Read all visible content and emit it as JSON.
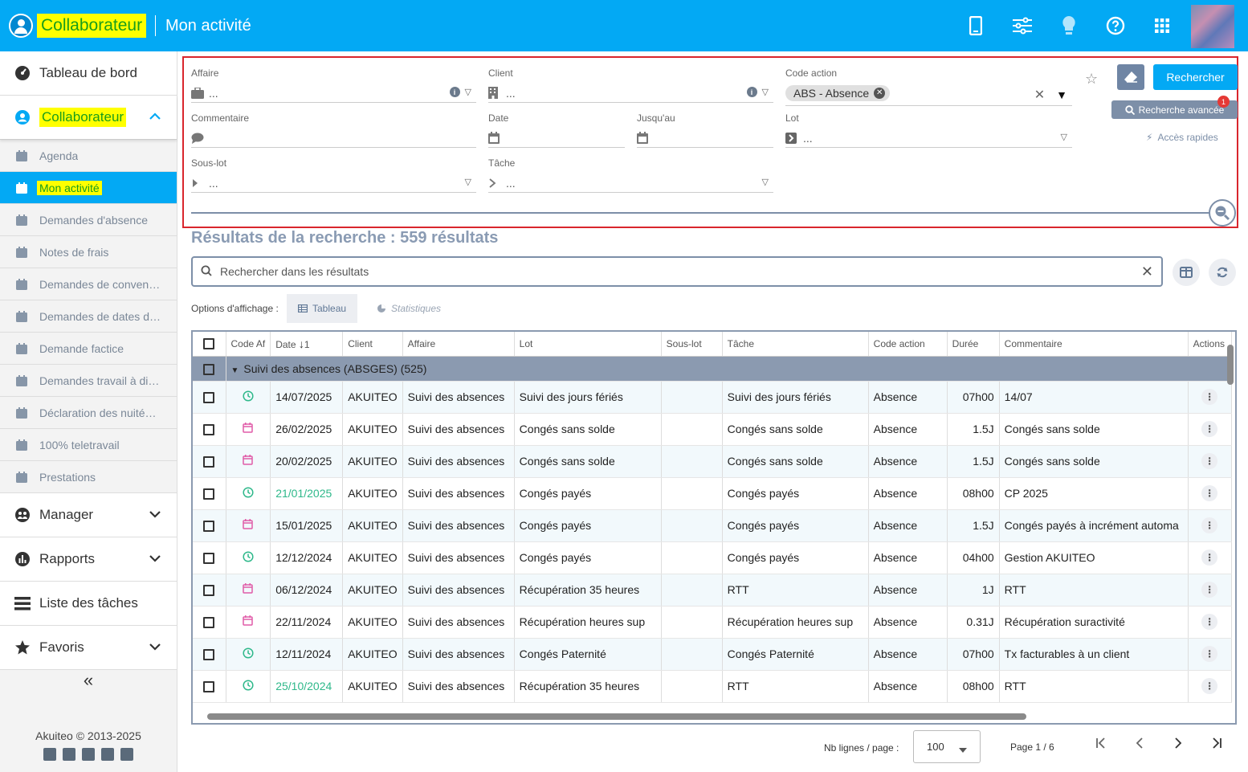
{
  "header": {
    "app_title": "Collaborateur",
    "page_title": "Mon activité",
    "icons": [
      "mobile-icon",
      "sliders-icon",
      "lightbulb-icon",
      "help-icon",
      "apps-grid-icon"
    ]
  },
  "sidebar": {
    "dashboard": "Tableau de bord",
    "collaborateur": "Collaborateur",
    "subitems": [
      {
        "label": "Agenda",
        "icon": "calendar-clock-icon"
      },
      {
        "label": "Mon activité",
        "icon": "calendar-user-icon"
      },
      {
        "label": "Demandes d'absence",
        "icon": "calendar-x-icon"
      },
      {
        "label": "Notes de frais",
        "icon": "receipt-icon"
      },
      {
        "label": "Demandes de conven…",
        "icon": "chat-icon"
      },
      {
        "label": "Demandes de dates d…",
        "icon": "chat-icon"
      },
      {
        "label": "Demande factice",
        "icon": "horse-icon"
      },
      {
        "label": "Demandes travail à di…",
        "icon": "chat-icon"
      },
      {
        "label": "Déclaration des nuité…",
        "icon": "moon-icon"
      },
      {
        "label": "100% teletravail",
        "icon": "id-card-icon"
      },
      {
        "label": "Prestations",
        "icon": "hand-icon"
      }
    ],
    "manager": "Manager",
    "rapports": "Rapports",
    "taches": "Liste des tâches",
    "favoris": "Favoris",
    "collapse": "«",
    "copyright": "Akuiteo © 2013-2025"
  },
  "filters": {
    "affaire_label": "Affaire",
    "affaire_value": "...",
    "client_label": "Client",
    "client_value": "...",
    "code_action_label": "Code action",
    "code_action_chip": "ABS - Absence",
    "commentaire_label": "Commentaire",
    "date_label": "Date",
    "jusquau_label": "Jusqu'au",
    "lot_label": "Lot",
    "lot_value": "...",
    "souslot_label": "Sous-lot",
    "souslot_value": "...",
    "tache_label": "Tâche",
    "tache_value": "...",
    "search_button": "Rechercher",
    "advanced_button": "Recherche avancée",
    "advanced_badge": "1",
    "quick_access": "Accès rapides"
  },
  "results": {
    "title": "Résultats de la recherche : 559 résultats",
    "search_placeholder": "Rechercher dans les résultats",
    "options_label": "Options d'affichage :",
    "tab_table": "Tableau",
    "tab_stats": "Statistiques"
  },
  "table": {
    "columns": [
      "Code Af",
      "Date",
      "Client",
      "Affaire",
      "Lot",
      "Sous-lot",
      "Tâche",
      "Code action",
      "Durée",
      "Commentaire",
      "Actions"
    ],
    "sort_indicator": "1",
    "group": "Suivi des absences (ABSGES) (525)",
    "rows": [
      {
        "icon": "clock",
        "date": "14/07/2025",
        "date_green": false,
        "client": "AKUITEO",
        "affaire": "Suivi des absences",
        "lot": "Suivi des jours fériés",
        "souslot": "",
        "tache": "Suivi des jours fériés",
        "code": "Absence",
        "duree": "07h00",
        "comment": "14/07"
      },
      {
        "icon": "calendar",
        "date": "26/02/2025",
        "date_green": false,
        "client": "AKUITEO",
        "affaire": "Suivi des absences",
        "lot": "Congés sans solde",
        "souslot": "",
        "tache": "Congés sans solde",
        "code": "Absence",
        "duree": "1.5J",
        "comment": "Congés sans solde"
      },
      {
        "icon": "calendar",
        "date": "20/02/2025",
        "date_green": false,
        "client": "AKUITEO",
        "affaire": "Suivi des absences",
        "lot": "Congés sans solde",
        "souslot": "",
        "tache": "Congés sans solde",
        "code": "Absence",
        "duree": "1.5J",
        "comment": "Congés sans solde"
      },
      {
        "icon": "clock",
        "date": "21/01/2025",
        "date_green": true,
        "client": "AKUITEO",
        "affaire": "Suivi des absences",
        "lot": "Congés payés",
        "souslot": "",
        "tache": "Congés payés",
        "code": "Absence",
        "duree": "08h00",
        "comment": "CP 2025"
      },
      {
        "icon": "calendar",
        "date": "15/01/2025",
        "date_green": false,
        "client": "AKUITEO",
        "affaire": "Suivi des absences",
        "lot": "Congés payés",
        "souslot": "",
        "tache": "Congés payés",
        "code": "Absence",
        "duree": "1.5J",
        "comment": "Congés payés à incrément automa"
      },
      {
        "icon": "clock",
        "date": "12/12/2024",
        "date_green": false,
        "client": "AKUITEO",
        "affaire": "Suivi des absences",
        "lot": "Congés payés",
        "souslot": "",
        "tache": "Congés payés",
        "code": "Absence",
        "duree": "04h00",
        "comment": "Gestion AKUITEO"
      },
      {
        "icon": "calendar",
        "date": "06/12/2024",
        "date_green": false,
        "client": "AKUITEO",
        "affaire": "Suivi des absences",
        "lot": "Récupération 35 heures",
        "souslot": "",
        "tache": "RTT",
        "code": "Absence",
        "duree": "1J",
        "comment": "RTT"
      },
      {
        "icon": "calendar",
        "date": "22/11/2024",
        "date_green": false,
        "client": "AKUITEO",
        "affaire": "Suivi des absences",
        "lot": "Récupération heures sup",
        "souslot": "",
        "tache": "Récupération heures sup",
        "code": "Absence",
        "duree": "0.31J",
        "comment": "Récupération suractivité"
      },
      {
        "icon": "clock",
        "date": "12/11/2024",
        "date_green": false,
        "client": "AKUITEO",
        "affaire": "Suivi des absences",
        "lot": "Congés Paternité",
        "souslot": "",
        "tache": "Congés Paternité",
        "code": "Absence",
        "duree": "07h00",
        "comment": "Tx facturables à un client"
      },
      {
        "icon": "clock",
        "date": "25/10/2024",
        "date_green": true,
        "client": "AKUITEO",
        "affaire": "Suivi des absences",
        "lot": "Récupération 35 heures",
        "souslot": "",
        "tache": "RTT",
        "code": "Absence",
        "duree": "08h00",
        "comment": "RTT"
      }
    ]
  },
  "pager": {
    "rows_label": "Nb lignes / page :",
    "rows_value": "100",
    "page_text": "Page 1 / 6"
  },
  "colors": {
    "brand": "#03a9f4",
    "highlight": "#ffff00",
    "group_row": "#8b9ab0",
    "green_date": "#2eb88a",
    "calendar_icon": "#e05ca8",
    "clock_icon": "#2eb88a"
  }
}
